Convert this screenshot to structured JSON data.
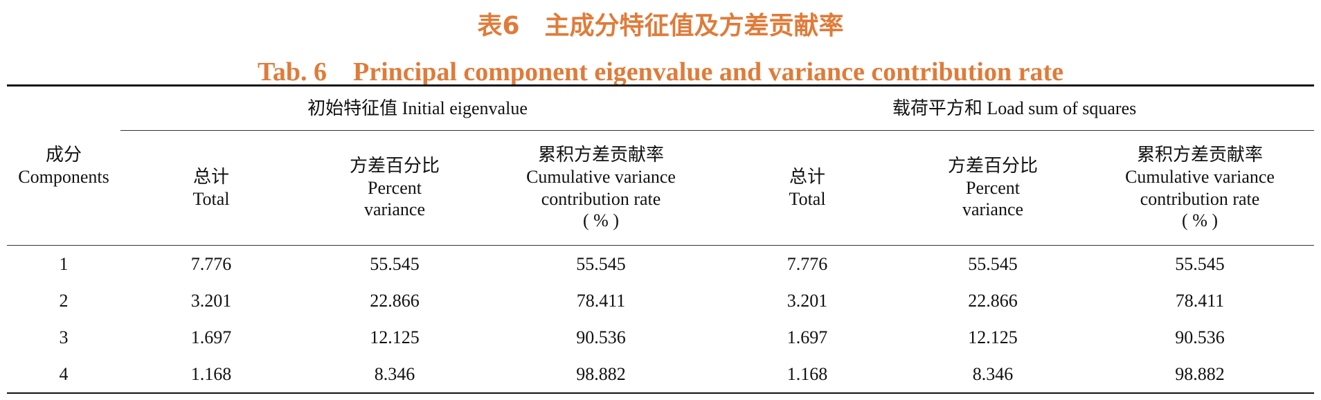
{
  "title_cn": "表6　主成分特征值及方差贡献率",
  "title_en": "Tab. 6　Principal component eigenvalue and variance contribution rate",
  "table": {
    "stub_header": [
      "成分",
      "Components"
    ],
    "groups": [
      "初始特征值 Initial eigenvalue",
      "载荷平方和 Load sum of squares"
    ],
    "columns": [
      [
        "总计",
        "Total"
      ],
      [
        "方差百分比",
        "Percent",
        "variance"
      ],
      [
        "累积方差贡献率",
        "Cumulative variance",
        "contribution rate",
        "( % )"
      ],
      [
        "总计",
        "Total"
      ],
      [
        "方差百分比",
        "Percent",
        "variance"
      ],
      [
        "累积方差贡献率",
        "Cumulative variance",
        "contribution rate",
        "( % )"
      ]
    ],
    "rows": [
      [
        1,
        7.776,
        55.545,
        55.545,
        7.776,
        55.545,
        55.545
      ],
      [
        2,
        3.201,
        22.866,
        78.411,
        3.201,
        22.866,
        78.411
      ],
      [
        3,
        1.697,
        12.125,
        90.536,
        1.697,
        12.125,
        90.536
      ],
      [
        4,
        1.168,
        8.346,
        98.882,
        1.168,
        8.346,
        98.882
      ]
    ]
  }
}
